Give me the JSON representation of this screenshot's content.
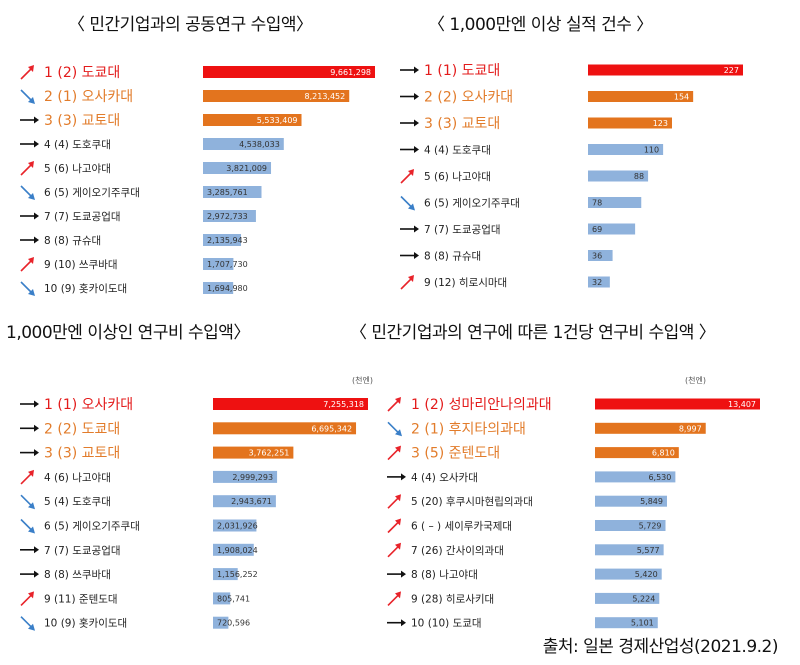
{
  "source": "출처: 일본 경제산업성(2021.9.2)",
  "chart_data": [
    {
      "type": "bar",
      "title": "〈 민간기업과의 공동연구 수입액〉",
      "unit": "",
      "rows": [
        {
          "label": "1 (2) 도쿄대",
          "value": 9661298,
          "display": "9,661,298",
          "trend": "up"
        },
        {
          "label": "2 (1) 오사카대",
          "value": 8213452,
          "display": "8,213,452",
          "trend": "down"
        },
        {
          "label": "3 (3) 교토대",
          "value": 5533409,
          "display": "5,533,409",
          "trend": "same"
        },
        {
          "label": "4 (4) 도호쿠대",
          "value": 4538033,
          "display": "4,538,033",
          "trend": "same"
        },
        {
          "label": "5 (6) 나고야대",
          "value": 3821009,
          "display": "3,821,009",
          "trend": "up"
        },
        {
          "label": "6 (5) 게이오기주쿠대",
          "value": 3285761,
          "display": "3,285,761",
          "trend": "down"
        },
        {
          "label": "7 (7) 도쿄공업대",
          "value": 2972733,
          "display": "2,972,733",
          "trend": "same"
        },
        {
          "label": "8 (8) 규슈대",
          "value": 2135943,
          "display": "2,135,943",
          "trend": "same"
        },
        {
          "label": "9 (10) 쓰쿠바대",
          "value": 1707730,
          "display": "1,707,730",
          "trend": "up"
        },
        {
          "label": "10 (9) 홋카이도대",
          "value": 1694980,
          "display": "1,694,980",
          "trend": "down"
        }
      ]
    },
    {
      "type": "bar",
      "title": "〈 1,000만엔 이상 실적 건수 〉",
      "unit": "",
      "rows": [
        {
          "label": "1 (1) 도쿄대",
          "value": 227,
          "display": "227",
          "trend": "same"
        },
        {
          "label": "2 (2) 오사카대",
          "value": 154,
          "display": "154",
          "trend": "same"
        },
        {
          "label": "3 (3) 교토대",
          "value": 123,
          "display": "123",
          "trend": "same"
        },
        {
          "label": "4 (4) 도호쿠대",
          "value": 110,
          "display": "110",
          "trend": "same"
        },
        {
          "label": "5 (6) 나고야대",
          "value": 88,
          "display": "88",
          "trend": "up"
        },
        {
          "label": "6 (5) 게이오기주쿠대",
          "value": 78,
          "display": "78",
          "trend": "down"
        },
        {
          "label": "7 (7) 도쿄공업대",
          "value": 69,
          "display": "69",
          "trend": "same"
        },
        {
          "label": "8 (8) 규슈대",
          "value": 36,
          "display": "36",
          "trend": "same"
        },
        {
          "label": "9 (12) 히로시마대",
          "value": 32,
          "display": "32",
          "trend": "up"
        }
      ]
    },
    {
      "type": "bar",
      "title": "1,000만엔 이상인 연구비 수입액〉",
      "unit": "(천엔)",
      "rows": [
        {
          "label": "1 (1) 오사카대",
          "value": 7255318,
          "display": "7,255,318",
          "trend": "same"
        },
        {
          "label": "2 (2) 도쿄대",
          "value": 6695342,
          "display": "6,695,342",
          "trend": "same"
        },
        {
          "label": "3 (3) 교토대",
          "value": 3762251,
          "display": "3,762,251",
          "trend": "same"
        },
        {
          "label": "4 (6) 나고야대",
          "value": 2999293,
          "display": "2,999,293",
          "trend": "up"
        },
        {
          "label": "5 (4) 도호쿠대",
          "value": 2943671,
          "display": "2,943,671",
          "trend": "down"
        },
        {
          "label": "6 (5) 게이오기주쿠대",
          "value": 2031926,
          "display": "2,031,926",
          "trend": "down"
        },
        {
          "label": "7 (7) 도쿄공업대",
          "value": 1908024,
          "display": "1,908,024",
          "trend": "same"
        },
        {
          "label": "8 (8) 쓰쿠바대",
          "value": 1156252,
          "display": "1,156,252",
          "trend": "same"
        },
        {
          "label": "9 (11) 준텐도대",
          "value": 805741,
          "display": "805,741",
          "trend": "up"
        },
        {
          "label": "10 (9) 홋카이도대",
          "value": 720596,
          "display": "720,596",
          "trend": "down"
        }
      ]
    },
    {
      "type": "bar",
      "title": "〈 민간기업과의 연구에 따른 1건당 연구비 수입액 〉",
      "unit": "(천엔)",
      "rows": [
        {
          "label": "1 (2) 성마리안나의과대",
          "value": 13407,
          "display": "13,407",
          "trend": "up"
        },
        {
          "label": "2 (1) 후지타의과대",
          "value": 8997,
          "display": "8,997",
          "trend": "down"
        },
        {
          "label": "3 (5) 준텐도대",
          "value": 6810,
          "display": "6,810",
          "trend": "up"
        },
        {
          "label": "4 (4) 오사카대",
          "value": 6530,
          "display": "6,530",
          "trend": "same"
        },
        {
          "label": "5 (20) 후쿠시마현립의과대",
          "value": 5849,
          "display": "5,849",
          "trend": "up"
        },
        {
          "label": "6 ( – ) 세이루카국제대",
          "value": 5729,
          "display": "5,729",
          "trend": "up"
        },
        {
          "label": "7 (26) 간사이의과대",
          "value": 5577,
          "display": "5,577",
          "trend": "up"
        },
        {
          "label": "8 (8) 나고야대",
          "value": 5420,
          "display": "5,420",
          "trend": "same"
        },
        {
          "label": "9 (28) 히로사키대",
          "value": 5224,
          "display": "5,224",
          "trend": "up"
        },
        {
          "label": "10 (10) 도쿄대",
          "value": 5101,
          "display": "5,101",
          "trend": "same"
        }
      ]
    }
  ],
  "colors": {
    "red": "#ee1111",
    "orange": "#e3741e",
    "blue": "#8fb2dc",
    "arrow_up": "#e8232a",
    "arrow_down": "#3a7fc8",
    "arrow_same": "#111111",
    "label_red": "#e31b1b",
    "label_orange": "#e27c2b",
    "label_default": "#222222"
  }
}
